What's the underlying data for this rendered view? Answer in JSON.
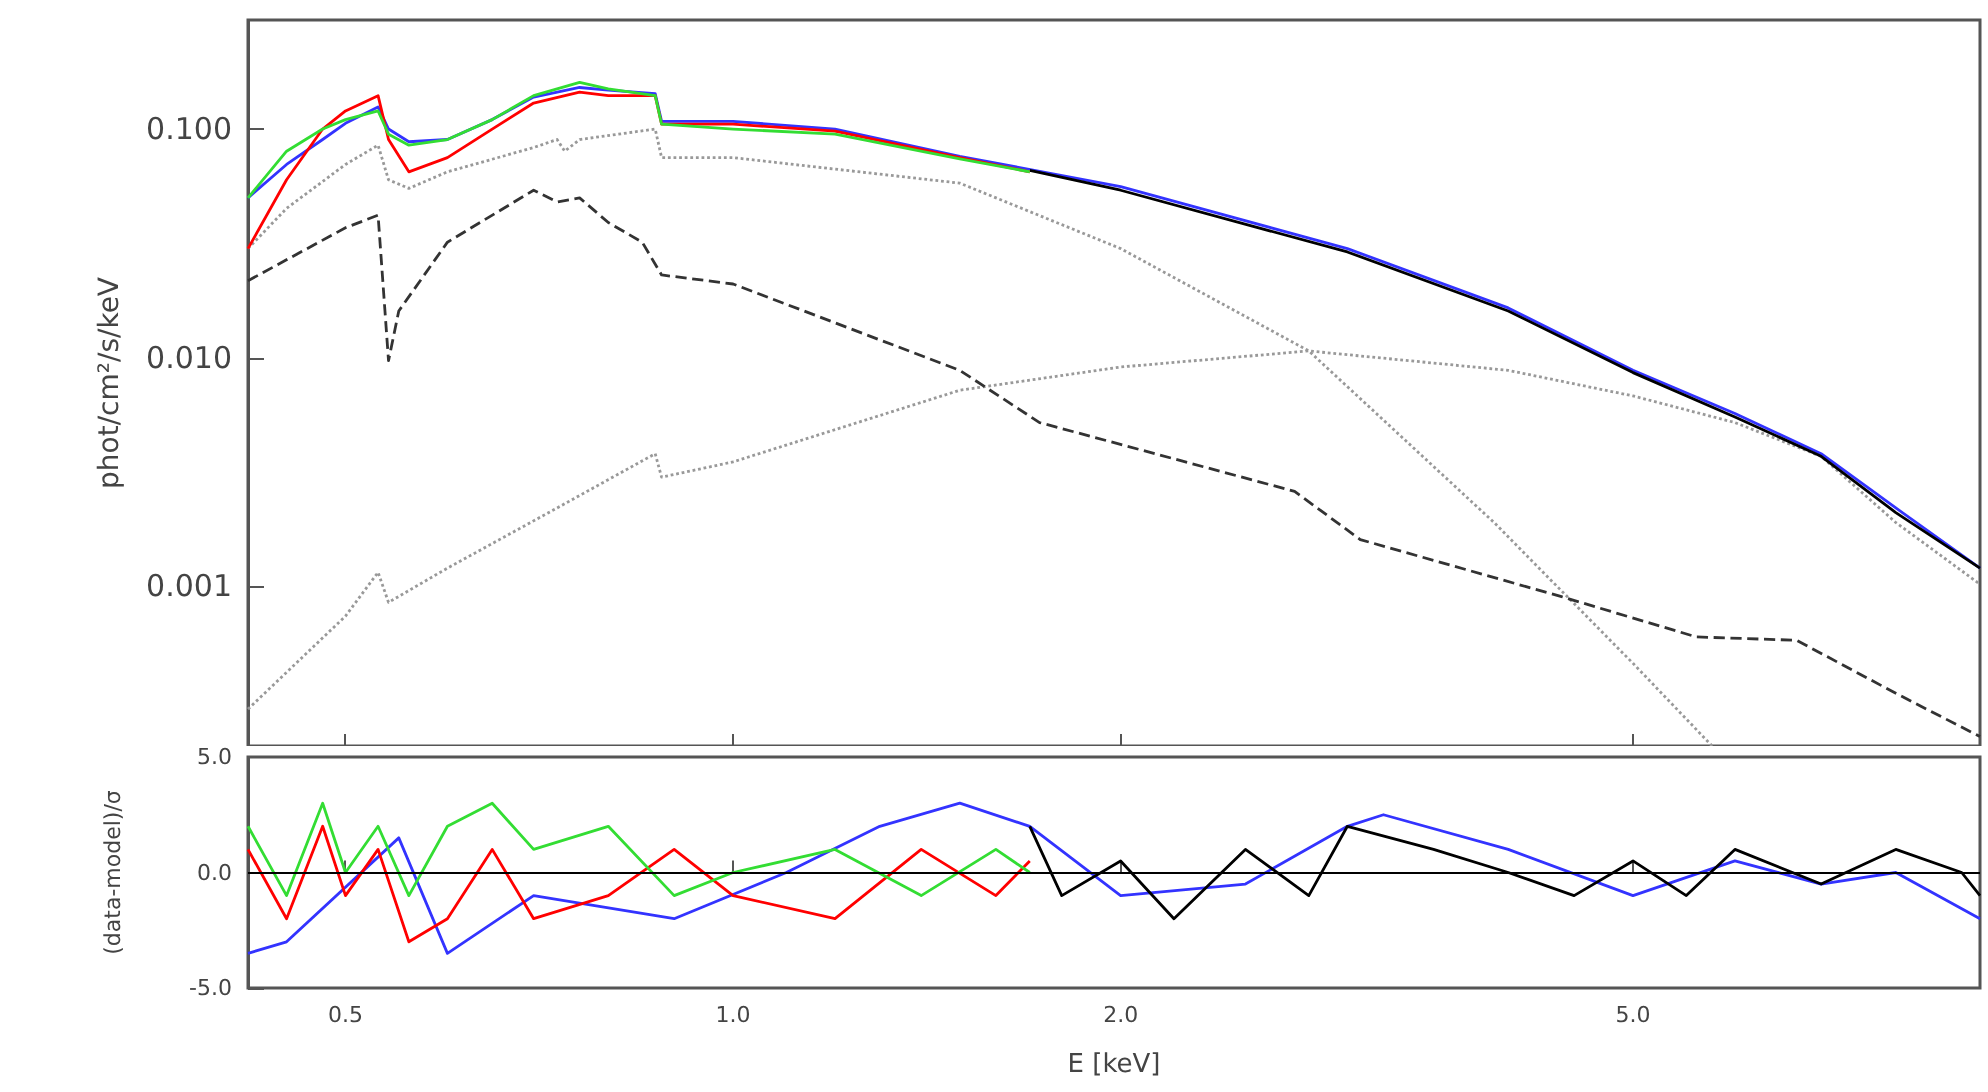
{
  "chart_data": [
    {
      "type": "line",
      "ylabel": "phot/cm²/s/keV",
      "log": "xy",
      "tick_labels": "y",
      "xlim": [
        0.42,
        9.3
      ],
      "ylim": [
        0.0002,
        0.3
      ],
      "xticks": [
        0.5,
        1,
        2,
        5
      ],
      "yticks": [
        {
          "value": 0.001,
          "label": "0.001"
        },
        {
          "value": 0.01,
          "label": "0.010"
        },
        {
          "value": 0.1,
          "label": "0.100"
        }
      ],
      "series": [
        {
          "color": "#999999",
          "line_style": "dotted",
          "x": [
            0.42,
            0.45,
            0.5,
            0.53,
            0.54,
            0.56,
            0.6,
            0.7,
            0.73,
            0.74,
            0.76,
            0.87,
            0.88,
            1.0,
            1.5,
            2.0,
            2.8,
            3.9,
            5.0,
            5.76
          ],
          "values": [
            0.03,
            0.045,
            0.07,
            0.085,
            0.06,
            0.055,
            0.065,
            0.083,
            0.09,
            0.08,
            0.09,
            0.1,
            0.075,
            0.075,
            0.058,
            0.03,
            0.0107,
            0.0019,
            0.00046,
            0.0002
          ]
        },
        {
          "color": "#999999",
          "line_style": "dotted",
          "x": [
            0.42,
            0.5,
            0.53,
            0.54,
            0.6,
            0.73,
            0.87,
            0.88,
            1.0,
            1.5,
            2.0,
            2.8,
            4.0,
            5.0,
            6.0,
            7.0,
            8.0,
            9.3
          ],
          "values": [
            0.00029,
            0.00074,
            0.00115,
            0.00085,
            0.0012,
            0.0022,
            0.0038,
            0.003,
            0.0035,
            0.0072,
            0.0091,
            0.0107,
            0.0088,
            0.0068,
            0.0052,
            0.0037,
            0.0019,
            0.00102
          ]
        },
        {
          "color": "#333333",
          "line_style": "dashed",
          "x": [
            0.42,
            0.5,
            0.53,
            0.54,
            0.55,
            0.6,
            0.7,
            0.73,
            0.76,
            0.8,
            0.85,
            0.88,
            1.0,
            1.5,
            1.73,
            2.73,
            3.07,
            4.4,
            5.6,
            6.7,
            8.0,
            9.3
          ],
          "values": [
            0.0217,
            0.037,
            0.042,
            0.0097,
            0.016,
            0.032,
            0.054,
            0.048,
            0.05,
            0.039,
            0.032,
            0.023,
            0.021,
            0.0088,
            0.0052,
            0.0026,
            0.0016,
            0.0009,
            0.0006,
            0.00058,
            0.00034,
            0.00022
          ]
        },
        {
          "color": "#3333ff",
          "line_style": "solid",
          "x": [
            0.42,
            0.45,
            0.48,
            0.5,
            0.53,
            0.54,
            0.56,
            0.6,
            0.65,
            0.7,
            0.76,
            0.8,
            0.87,
            0.88,
            1.0,
            1.2,
            1.5,
            2.0,
            3.0,
            4.0,
            5.0,
            6.0,
            7.0,
            8.0,
            9.3
          ],
          "values": [
            0.05,
            0.07,
            0.09,
            0.106,
            0.125,
            0.1,
            0.088,
            0.09,
            0.11,
            0.138,
            0.152,
            0.148,
            0.143,
            0.108,
            0.108,
            0.1,
            0.076,
            0.056,
            0.03,
            0.0165,
            0.0088,
            0.0057,
            0.0038,
            0.0022,
            0.0012
          ]
        },
        {
          "color": "#000000",
          "line_style": "solid",
          "x": [
            1.7,
            2.0,
            3.0,
            4.0,
            5.0,
            6.0,
            7.0,
            8.0,
            9.3
          ],
          "values": [
            0.066,
            0.054,
            0.029,
            0.016,
            0.0086,
            0.0055,
            0.0037,
            0.0021,
            0.0012
          ]
        },
        {
          "color": "#ff0000",
          "line_style": "solid",
          "x": [
            0.42,
            0.45,
            0.48,
            0.5,
            0.53,
            0.54,
            0.56,
            0.6,
            0.65,
            0.7,
            0.76,
            0.8,
            0.87,
            0.88,
            1.0,
            1.2,
            1.5,
            1.7
          ],
          "values": [
            0.03,
            0.06,
            0.1,
            0.12,
            0.14,
            0.09,
            0.065,
            0.075,
            0.1,
            0.13,
            0.145,
            0.14,
            0.14,
            0.105,
            0.105,
            0.098,
            0.075,
            0.065
          ]
        },
        {
          "color": "#33dd33",
          "line_style": "solid",
          "x": [
            0.42,
            0.45,
            0.48,
            0.5,
            0.53,
            0.54,
            0.56,
            0.6,
            0.65,
            0.7,
            0.76,
            0.8,
            0.87,
            0.88,
            1.0,
            1.2,
            1.5,
            1.7
          ],
          "values": [
            0.05,
            0.08,
            0.1,
            0.11,
            0.12,
            0.095,
            0.085,
            0.09,
            0.11,
            0.14,
            0.16,
            0.15,
            0.14,
            0.105,
            0.1,
            0.095,
            0.074,
            0.065
          ]
        }
      ]
    },
    {
      "type": "line",
      "xlabel": "E [keV]",
      "ylabel": "(data-model)/σ",
      "log": "x",
      "xlim": [
        0.42,
        9.3
      ],
      "ylim": [
        -5,
        5
      ],
      "xticks": [
        {
          "value": 0.5,
          "label": "0.5"
        },
        {
          "value": 1,
          "label": "1.0"
        },
        {
          "value": 2,
          "label": "2.0"
        },
        {
          "value": 5,
          "label": "5.0"
        }
      ],
      "yticks": [
        {
          "value": -5,
          "label": "-5.0"
        },
        {
          "value": 0,
          "label": "0.0"
        },
        {
          "value": 5,
          "label": "5.0"
        }
      ],
      "ref_lines": [
        {
          "axis": "y",
          "value": 0,
          "color": "#000000"
        }
      ],
      "series": [
        {
          "color": "#3333ff",
          "line_style": "solid",
          "x": [
            0.42,
            0.45,
            0.55,
            0.6,
            0.7,
            0.9,
            1.1,
            1.3,
            1.5,
            1.7,
            2.0,
            2.5,
            3.0,
            3.2,
            4.0,
            5.0,
            6.0,
            7.0,
            8.0,
            9.3
          ],
          "values": [
            -3.5,
            -3,
            1.5,
            -3.5,
            -1,
            -2,
            0,
            2,
            3,
            2,
            -1,
            -0.5,
            2,
            2.5,
            1,
            -1,
            0.5,
            -0.5,
            0,
            -2
          ]
        },
        {
          "color": "#000000",
          "line_style": "solid",
          "x": [
            1.7,
            1.8,
            2.0,
            2.2,
            2.5,
            2.8,
            3.0,
            3.5,
            4.0,
            4.5,
            5.0,
            5.5,
            6.0,
            7.0,
            8.0,
            9.0,
            9.3
          ],
          "values": [
            2,
            -1,
            0.5,
            -2,
            1,
            -1,
            2,
            1,
            0,
            -1,
            0.5,
            -1,
            1,
            -0.5,
            1,
            0,
            -1
          ]
        },
        {
          "color": "#ff0000",
          "line_style": "solid",
          "x": [
            0.42,
            0.45,
            0.48,
            0.5,
            0.53,
            0.56,
            0.6,
            0.65,
            0.7,
            0.8,
            0.9,
            1.0,
            1.2,
            1.4,
            1.6,
            1.7
          ],
          "values": [
            1,
            -2,
            2,
            -1,
            1,
            -3,
            -2,
            1,
            -2,
            -1,
            1,
            -1,
            -2,
            1,
            -1,
            0.5
          ]
        },
        {
          "color": "#33dd33",
          "line_style": "solid",
          "x": [
            0.42,
            0.45,
            0.48,
            0.5,
            0.53,
            0.56,
            0.6,
            0.65,
            0.7,
            0.8,
            0.9,
            1.0,
            1.2,
            1.4,
            1.6,
            1.7
          ],
          "values": [
            2,
            -1,
            3,
            0,
            2,
            -1,
            2,
            3,
            1,
            2,
            -1,
            0,
            1,
            -1,
            1,
            0
          ]
        }
      ]
    }
  ]
}
